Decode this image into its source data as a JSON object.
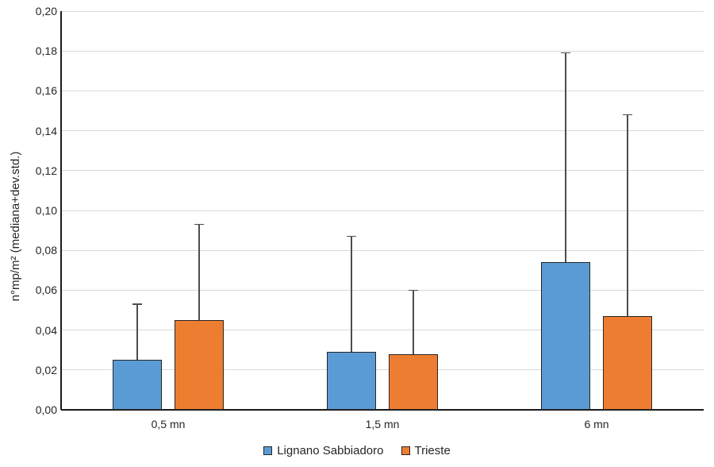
{
  "chart_data": {
    "type": "bar",
    "title": "",
    "categories": [
      "0,5 mn",
      "1,5 mn",
      "6 mn"
    ],
    "series": [
      {
        "name": "Lignano Sabbiadoro",
        "color": "#5B9BD5",
        "values": [
          0.025,
          0.029,
          0.074
        ],
        "error_top": [
          0.053,
          0.087,
          0.179
        ]
      },
      {
        "name": "Trieste",
        "color": "#ED7D31",
        "values": [
          0.045,
          0.028,
          0.047
        ],
        "error_top": [
          0.093,
          0.06,
          0.148
        ]
      }
    ],
    "xlabel": "",
    "ylabel": "n°mp/m² (mediana+dev.std.)",
    "ylim": [
      0,
      0.2
    ],
    "ytick_step": 0.02,
    "ytick_labels": [
      "0,00",
      "0,02",
      "0,04",
      "0,06",
      "0,08",
      "0,10",
      "0,12",
      "0,14",
      "0,16",
      "0,18",
      "0,20"
    ],
    "grid": true,
    "legend_position": "bottom",
    "error_bars": "upper only, cap at top"
  },
  "styles": {
    "background": "#ffffff",
    "grid_color": "#d9d9d9",
    "axis_color": "#1a1a1a",
    "text_color": "#262626",
    "bar_border_color": "#262626",
    "error_bar_color": "#4d4d4d",
    "series_colors": [
      "#5B9BD5",
      "#ED7D31"
    ]
  }
}
